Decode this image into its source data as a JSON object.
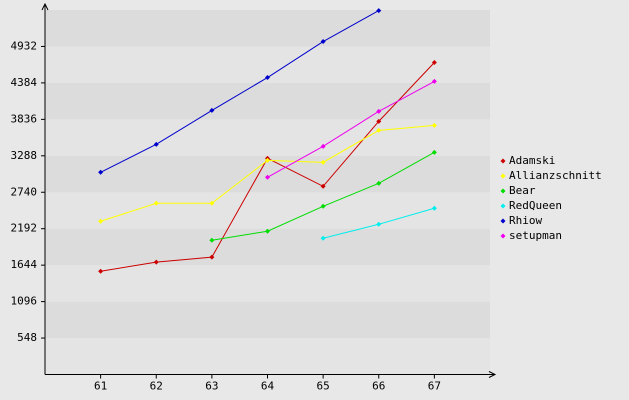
{
  "chart_data": {
    "type": "line",
    "x": [
      61,
      62,
      63,
      64,
      65,
      66,
      67
    ],
    "xlim": [
      60,
      68
    ],
    "xticks": [
      61,
      62,
      63,
      64,
      65,
      66,
      67
    ],
    "ylim": [
      0,
      5480
    ],
    "yticks": [
      548,
      1096,
      1644,
      2192,
      2740,
      3288,
      3836,
      4384,
      4932
    ],
    "legend": "right",
    "series": [
      {
        "name": "Adamski",
        "color": "#cc0000",
        "values": [
          1553,
          1689,
          1764,
          3250,
          2830,
          3806,
          4691
        ]
      },
      {
        "name": "Allianzschnitt",
        "color": "#ffff00",
        "values": [
          2304,
          2574,
          2574,
          3220,
          3190,
          3670,
          3745
        ]
      },
      {
        "name": "Bear",
        "color": "#00dd00",
        "values": [
          null,
          null,
          2019,
          2154,
          2529,
          2874,
          3340
        ]
      },
      {
        "name": "RedQueen",
        "color": "#00eeee",
        "values": [
          null,
          null,
          null,
          null,
          2049,
          2259,
          2499
        ]
      },
      {
        "name": "Rhiow",
        "color": "#0000cc",
        "values": [
          3040,
          3460,
          3970,
          4465,
          5006,
          5471,
          null
        ]
      },
      {
        "name": "setupman",
        "color": "#ee00ee",
        "values": [
          null,
          null,
          null,
          2965,
          3430,
          3956,
          4406
        ]
      }
    ]
  }
}
